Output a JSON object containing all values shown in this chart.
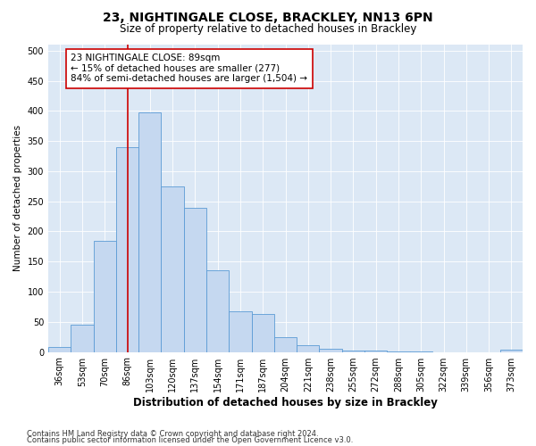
{
  "title1": "23, NIGHTINGALE CLOSE, BRACKLEY, NN13 6PN",
  "title2": "Size of property relative to detached houses in Brackley",
  "xlabel": "Distribution of detached houses by size in Brackley",
  "ylabel": "Number of detached properties",
  "categories": [
    "36sqm",
    "53sqm",
    "70sqm",
    "86sqm",
    "103sqm",
    "120sqm",
    "137sqm",
    "154sqm",
    "171sqm",
    "187sqm",
    "204sqm",
    "221sqm",
    "238sqm",
    "255sqm",
    "272sqm",
    "288sqm",
    "305sqm",
    "322sqm",
    "339sqm",
    "356sqm",
    "373sqm"
  ],
  "values": [
    8,
    45,
    184,
    340,
    397,
    275,
    239,
    135,
    68,
    63,
    25,
    11,
    5,
    3,
    2,
    1,
    1,
    0,
    0,
    0,
    4
  ],
  "bar_color": "#c5d8f0",
  "bar_edge_color": "#5b9bd5",
  "vline_x": 3,
  "vline_color": "#cc0000",
  "annotation_line1": "23 NIGHTINGALE CLOSE: 89sqm",
  "annotation_line2": "← 15% of detached houses are smaller (277)",
  "annotation_line3": "84% of semi-detached houses are larger (1,504) →",
  "annotation_box_color": "#ffffff",
  "annotation_box_edge": "#cc0000",
  "ylim": [
    0,
    510
  ],
  "yticks": [
    0,
    50,
    100,
    150,
    200,
    250,
    300,
    350,
    400,
    450,
    500
  ],
  "background_color": "#dce8f5",
  "footer1": "Contains HM Land Registry data © Crown copyright and database right 2024.",
  "footer2": "Contains public sector information licensed under the Open Government Licence v3.0.",
  "title1_fontsize": 10,
  "title2_fontsize": 8.5,
  "xlabel_fontsize": 8.5,
  "ylabel_fontsize": 7.5,
  "tick_fontsize": 7,
  "annotation_fontsize": 7.5,
  "footer_fontsize": 6
}
